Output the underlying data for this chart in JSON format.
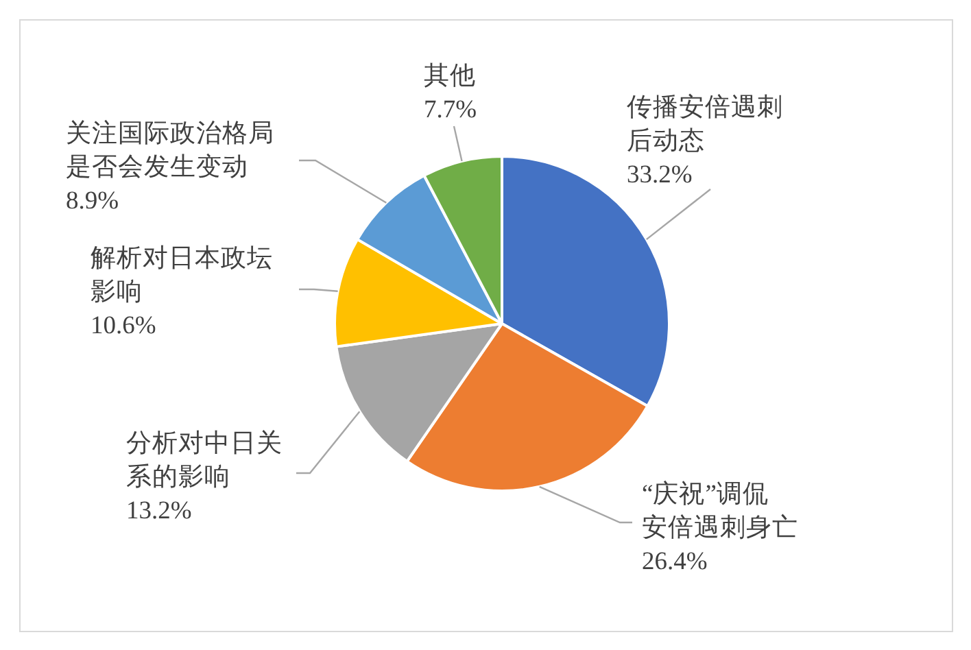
{
  "chart_data": {
    "type": "pie",
    "categories": [
      "传播安倍遇刺后动态",
      "“庆祝”调侃安倍遇刺身亡",
      "分析对中日关系的影响",
      "解析对日本政坛影响",
      "关注国际政治格局是否会发生变动",
      "其他"
    ],
    "values": [
      33.2,
      26.4,
      13.2,
      10.6,
      8.9,
      7.7
    ],
    "colors": [
      "#4472c4",
      "#ed7d31",
      "#a5a5a5",
      "#ffc000",
      "#5b9bd5",
      "#70ad47"
    ],
    "value_labels": [
      "33.2%",
      "26.4%",
      "13.2%",
      "10.6%",
      "8.9%",
      "7.7%"
    ]
  }
}
